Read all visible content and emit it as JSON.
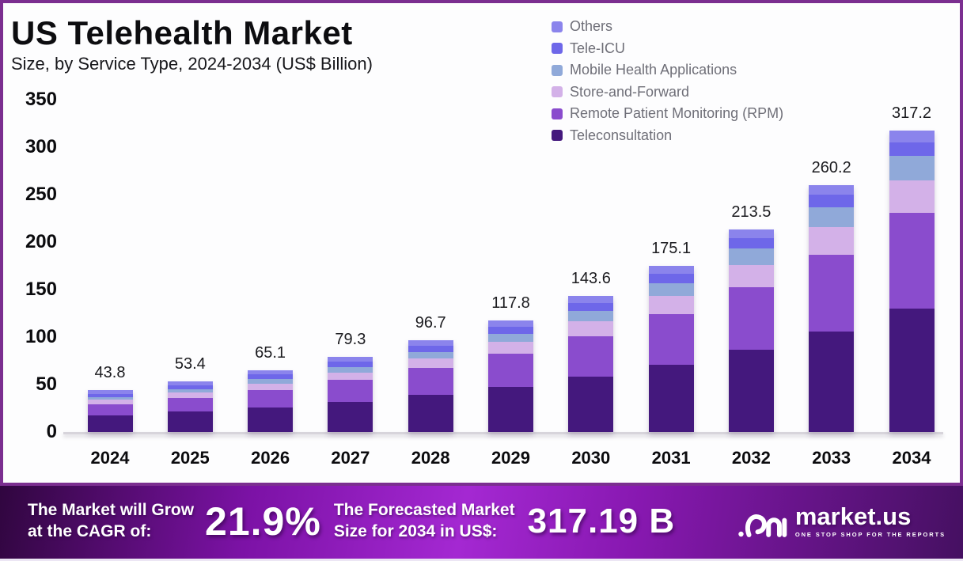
{
  "header": {
    "title": "US Telehealth Market",
    "subtitle": "Size, by Service Type, 2024-2034 (US$ Billion)"
  },
  "colors": {
    "card_border": "#7b2e90",
    "teleconsultation": "#44187d",
    "rpm": "#8a4ccd",
    "store_and_forward": "#d3b1e8",
    "mobile_health": "#90a9d9",
    "tele_icu": "#6e67e9",
    "others": "#8b84ec",
    "axis": "#d7d4db",
    "banner_center": "#a428d2",
    "banner_edge": "#30063f"
  },
  "chart_data": {
    "type": "bar",
    "stacked": true,
    "title": "US Telehealth Market",
    "subtitle": "Size, by Service Type, 2024-2034 (US$ Billion)",
    "xlabel": "",
    "ylabel": "",
    "ylim": [
      0,
      350
    ],
    "yticks": [
      0,
      50,
      100,
      150,
      200,
      250,
      300,
      350
    ],
    "grid": false,
    "legend_position": "top-right",
    "categories": [
      "2024",
      "2025",
      "2026",
      "2027",
      "2028",
      "2029",
      "2030",
      "2031",
      "2032",
      "2033",
      "2034"
    ],
    "totals": [
      43.8,
      53.4,
      65.1,
      79.3,
      96.7,
      117.8,
      143.6,
      175.1,
      213.5,
      260.2,
      317.2
    ],
    "total_labels": [
      "43.8",
      "53.4",
      "65.1",
      "79.3",
      "96.7",
      "117.8",
      "143.6",
      "175.1",
      "213.5",
      "260.2",
      "317.2"
    ],
    "series": [
      {
        "name": "Teleconsultation",
        "color": "#44187d",
        "values": [
          17.5,
          21.4,
          26.2,
          32.0,
          39.2,
          47.8,
          58.3,
          71.1,
          86.8,
          106.0,
          130.0
        ]
      },
      {
        "name": "Remote Patient Monitoring (RPM)",
        "color": "#8a4ccd",
        "values": [
          12.0,
          14.8,
          18.3,
          22.6,
          27.9,
          34.5,
          42.7,
          52.8,
          65.3,
          80.7,
          100.5
        ]
      },
      {
        "name": "Store-and-Forward",
        "color": "#d3b1e8",
        "values": [
          4.3,
          5.3,
          6.5,
          8.0,
          10.0,
          12.5,
          15.6,
          19.4,
          23.9,
          29.2,
          34.5
        ]
      },
      {
        "name": "Mobile Health Applications",
        "color": "#90a9d9",
        "values": [
          2.9,
          3.6,
          4.5,
          5.6,
          7.0,
          8.8,
          11.0,
          13.7,
          17.0,
          20.9,
          25.5
        ]
      },
      {
        "name": "Tele-ICU",
        "color": "#6e67e9",
        "values": [
          3.7,
          4.3,
          5.0,
          5.7,
          6.6,
          7.5,
          8.5,
          9.7,
          11.1,
          12.8,
          14.5
        ]
      },
      {
        "name": "Others",
        "color": "#8b84ec",
        "values": [
          3.4,
          4.0,
          4.6,
          5.4,
          6.0,
          6.7,
          7.5,
          8.4,
          9.4,
          10.6,
          12.2
        ]
      }
    ],
    "legend": [
      {
        "label": "Others",
        "color": "#8b84ec"
      },
      {
        "label": "Tele-ICU",
        "color": "#6e67e9"
      },
      {
        "label": "Mobile Health Applications",
        "color": "#90a9d9"
      },
      {
        "label": "Store-and-Forward",
        "color": "#d3b1e8"
      },
      {
        "label": "Remote Patient Monitoring (RPM)",
        "color": "#8a4ccd"
      },
      {
        "label": "Teleconsultation",
        "color": "#44187d"
      }
    ]
  },
  "footer": {
    "cagr_label_line1": "The Market will Grow",
    "cagr_label_line2": "at the CAGR of:",
    "cagr_value": "21.9%",
    "forecast_label_line1": "The Forecasted Market",
    "forecast_label_line2": "Size for 2034 in US$:",
    "forecast_value": "317.19 B",
    "brand": {
      "name": "market.us",
      "tagline": "ONE STOP SHOP FOR THE REPORTS"
    }
  }
}
